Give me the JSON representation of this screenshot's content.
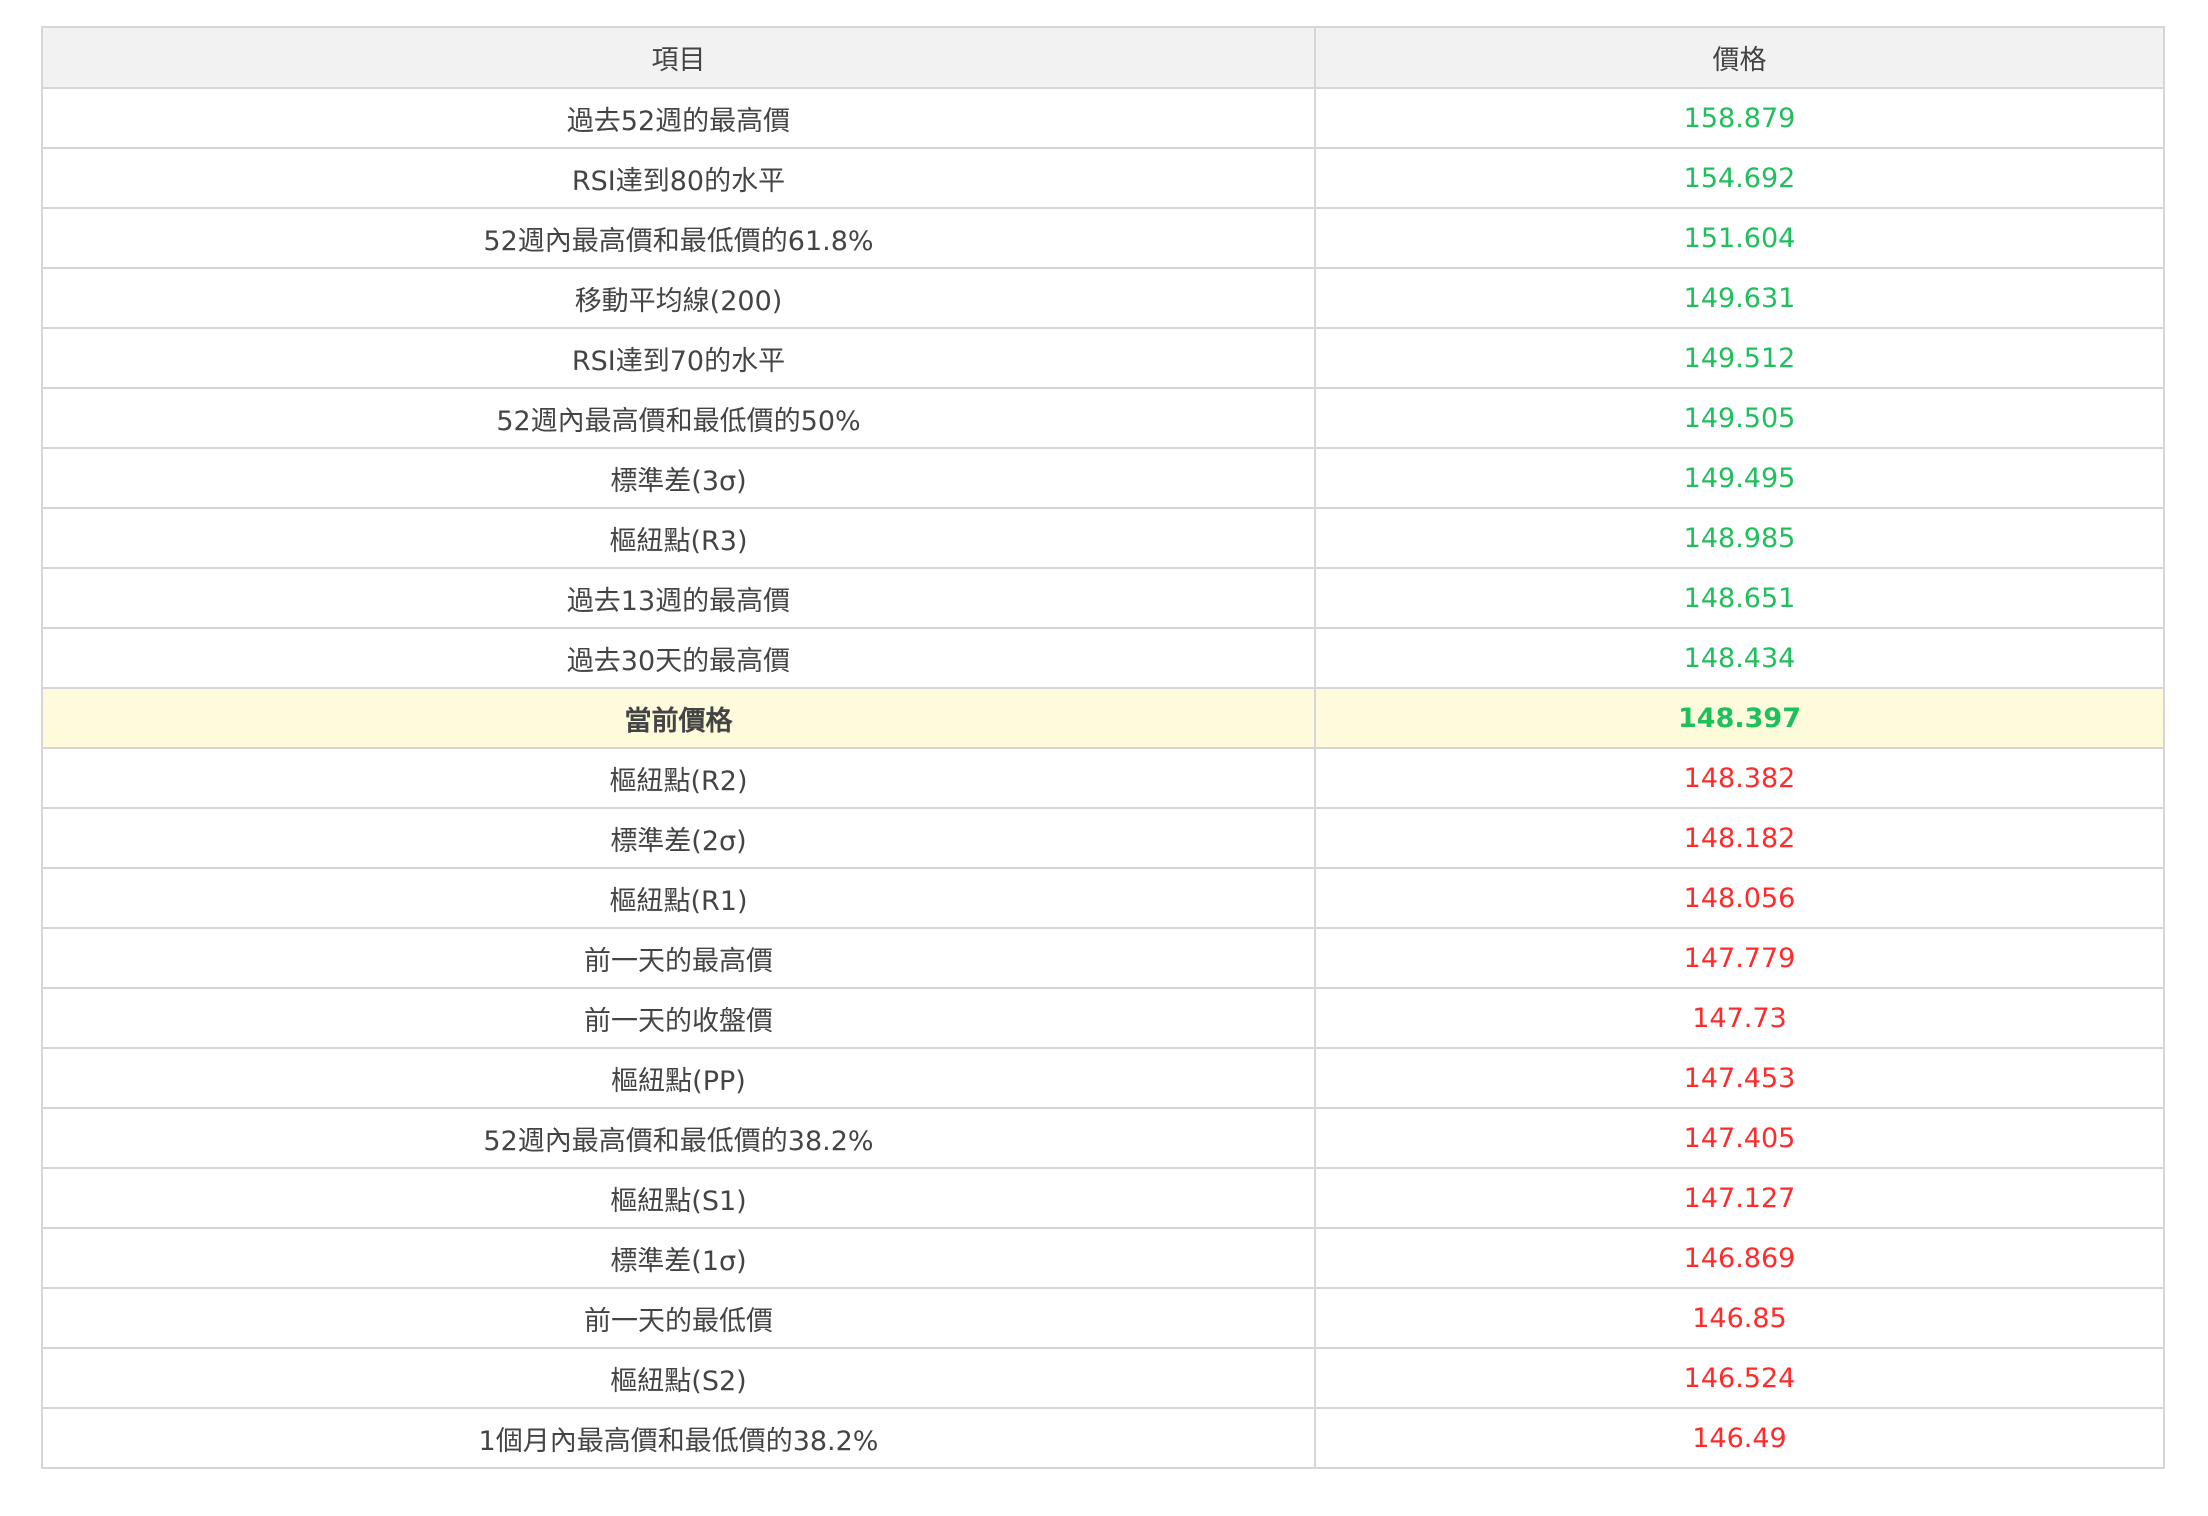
{
  "table": {
    "headers": [
      "項目",
      "價格"
    ],
    "colors": {
      "above": "#1fbf5c",
      "below": "#ff2b2b",
      "current_row_bg": "#fefbdc"
    },
    "rows": [
      {
        "item": "過去52週的最高價",
        "price": "158.879",
        "trend": "up"
      },
      {
        "item": "RSI達到80的水平",
        "price": "154.692",
        "trend": "up"
      },
      {
        "item": "52週內最高價和最低價的61.8%",
        "price": "151.604",
        "trend": "up"
      },
      {
        "item": "移動平均線(200)",
        "price": "149.631",
        "trend": "up"
      },
      {
        "item": "RSI達到70的水平",
        "price": "149.512",
        "trend": "up"
      },
      {
        "item": "52週內最高價和最低價的50%",
        "price": "149.505",
        "trend": "up"
      },
      {
        "item": "標準差(3σ)",
        "price": "149.495",
        "trend": "up"
      },
      {
        "item": "樞紐點(R3)",
        "price": "148.985",
        "trend": "up"
      },
      {
        "item": "過去13週的最高價",
        "price": "148.651",
        "trend": "up"
      },
      {
        "item": "過去30天的最高價",
        "price": "148.434",
        "trend": "up"
      },
      {
        "item": "當前價格",
        "price": "148.397",
        "trend": "up",
        "current": true
      },
      {
        "item": "樞紐點(R2)",
        "price": "148.382",
        "trend": "down"
      },
      {
        "item": "標準差(2σ)",
        "price": "148.182",
        "trend": "down"
      },
      {
        "item": "樞紐點(R1)",
        "price": "148.056",
        "trend": "down"
      },
      {
        "item": "前一天的最高價",
        "price": "147.779",
        "trend": "down"
      },
      {
        "item": "前一天的收盤價",
        "price": "147.73",
        "trend": "down"
      },
      {
        "item": "樞紐點(PP)",
        "price": "147.453",
        "trend": "down"
      },
      {
        "item": "52週內最高價和最低價的38.2%",
        "price": "147.405",
        "trend": "down"
      },
      {
        "item": "樞紐點(S1)",
        "price": "147.127",
        "trend": "down"
      },
      {
        "item": "標準差(1σ)",
        "price": "146.869",
        "trend": "down"
      },
      {
        "item": "前一天的最低價",
        "price": "146.85",
        "trend": "down"
      },
      {
        "item": "樞紐點(S2)",
        "price": "146.524",
        "trend": "down"
      },
      {
        "item": "1個月內最高價和最低價的38.2%",
        "price": "146.49",
        "trend": "down"
      }
    ]
  }
}
